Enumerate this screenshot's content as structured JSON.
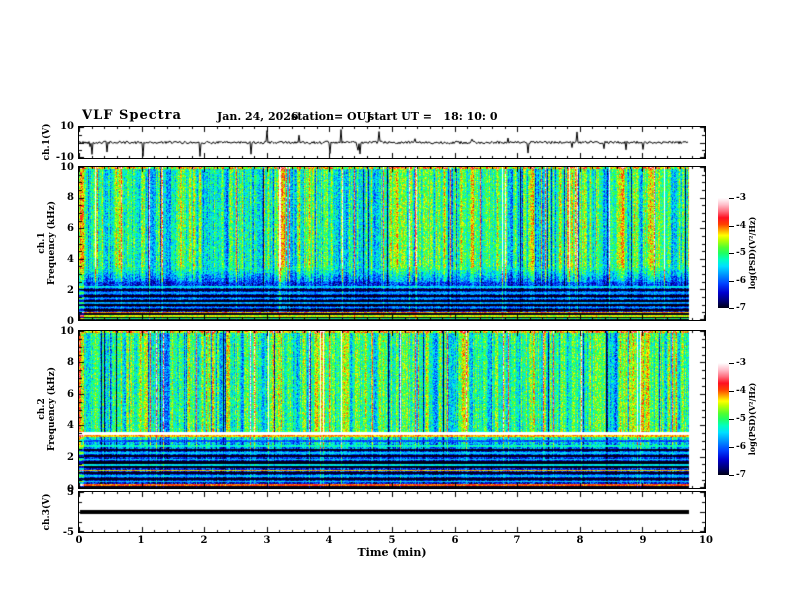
{
  "header": {
    "title": "VLF Spectra",
    "date": "Jan. 24, 2026",
    "station": "station= OUJ",
    "start_ut": "start UT =   18: 10: 0"
  },
  "xaxis": {
    "label": "Time (min)",
    "tick_labels": [
      "0",
      "1",
      "2",
      "3",
      "4",
      "5",
      "6",
      "7",
      "8",
      "9",
      "10"
    ],
    "range_min": [
      0,
      10
    ],
    "minor_tick_step_min": 0.2
  },
  "colorbar": {
    "label": "log(PSD)(V²/Hz)",
    "tick_labels": [
      "-3",
      "-4",
      "-5",
      "-6",
      "-7"
    ],
    "value_range": [
      -3,
      -7
    ],
    "stops": [
      [
        1.0,
        "#ffffff"
      ],
      [
        0.94,
        "#ffc0cc"
      ],
      [
        0.88,
        "#ff7080"
      ],
      [
        0.82,
        "#ff1020"
      ],
      [
        0.76,
        "#ff4000"
      ],
      [
        0.71,
        "#ffa000"
      ],
      [
        0.66,
        "#ffff00"
      ],
      [
        0.62,
        "#c0ff00"
      ],
      [
        0.55,
        "#50ff30"
      ],
      [
        0.5,
        "#20ff60"
      ],
      [
        0.44,
        "#00ffc0"
      ],
      [
        0.38,
        "#00e0ff"
      ],
      [
        0.3,
        "#0090ff"
      ],
      [
        0.22,
        "#0040ff"
      ],
      [
        0.14,
        "#0000d0"
      ],
      [
        0.06,
        "#000070"
      ],
      [
        0.0,
        "#000014"
      ]
    ]
  },
  "chart_data": [
    {
      "type": "line",
      "name": "ch1_voltage_waveform",
      "ylabel": "ch.1(V)",
      "ylim": [
        -10,
        10
      ],
      "ytick_labels": [
        "10",
        "-10"
      ],
      "x_data_extent_min": [
        0,
        9.75
      ],
      "summary": "Broadband noise centered on 0 V (about ±1 V) with frequent impulsive spikes reaching toward ±10 V across the whole record"
    },
    {
      "type": "heatmap",
      "name": "ch1_spectrogram",
      "ylabel_line1": "ch.1",
      "ylabel_line2": "Frequency (kHz)",
      "ylim": [
        0,
        10
      ],
      "ytick_labels": [
        "10",
        "8",
        "6",
        "4",
        "2",
        "0"
      ],
      "value_scale": "log(PSD)(V²/Hz), -7 to -3",
      "x_data_extent_min": [
        0,
        9.75
      ],
      "bands": [
        {
          "freq_khz": [
            3.2,
            10
          ],
          "mean_log_psd": -5.1,
          "texture": "green/teal background with dense vertical streaks ranging from red/yellow (-3.5) to dark blue (-6.5)"
        },
        {
          "freq_khz": [
            2.2,
            3.2
          ],
          "mean_log_psd": -5.9,
          "texture": "transition to blue speckle"
        },
        {
          "freq_khz": [
            0,
            2.2
          ],
          "mean_log_psd": -6.4,
          "texture": "dark blue with alternating dark and bright horizontal bands, thin red lines near 0.3-0.6 kHz"
        }
      ]
    },
    {
      "type": "heatmap",
      "name": "ch2_spectrogram",
      "ylabel_line1": "ch.2",
      "ylabel_line2": "Frequency (kHz)",
      "ylim": [
        0,
        10
      ],
      "ytick_labels": [
        "10",
        "8",
        "6",
        "4",
        "2",
        "0"
      ],
      "value_scale": "log(PSD)(V²/Hz), -7 to -3",
      "x_data_extent_min": [
        0,
        9.75
      ],
      "bands": [
        {
          "freq_khz": [
            3.7,
            10
          ],
          "mean_log_psd": -5.1,
          "texture": "green/teal with vertical red/yellow and dark-blue streaks"
        },
        {
          "freq_khz": [
            0.5,
            3.3
          ],
          "mean_log_psd": -6.3,
          "texture": "blue with horizontal line structure"
        }
      ],
      "spectral_lines": [
        {
          "freq_khz": 3.5,
          "log_psd": -4.5,
          "note": "bright yellow-green horizontal line across full record"
        },
        {
          "freq_khz": 1.15,
          "log_psd": -5.0,
          "note": "faint green line"
        },
        {
          "freq_khz": 0.25,
          "log_psd": -4.6,
          "note": "bright yellow-green line near bottom edge"
        }
      ]
    },
    {
      "type": "line",
      "name": "ch3_voltage_waveform",
      "ylabel": "ch.3(V)",
      "ylim": [
        -5,
        5
      ],
      "ytick_labels": [
        "5",
        "-5"
      ],
      "x_data_extent_min": [
        0,
        9.75
      ],
      "summary": "Constant 0 V heavy flat line from 0 to about 9.75 min"
    }
  ]
}
